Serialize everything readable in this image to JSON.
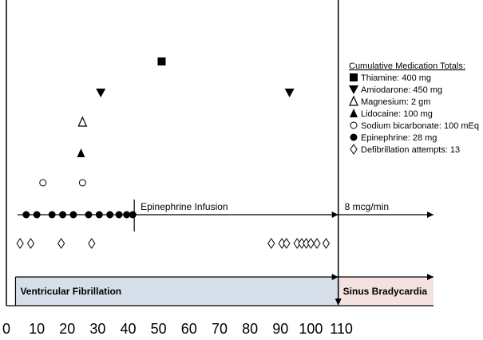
{
  "chart_data": {
    "type": "scatter",
    "xlim": [
      0,
      110
    ],
    "x_ticks": [
      "0",
      "10",
      "20",
      "30",
      "40",
      "50",
      "60",
      "70",
      "80",
      "90",
      "100",
      "110"
    ],
    "series": [
      {
        "name": "Thiamine: 400 mg",
        "marker": "square",
        "x": [
          51
        ]
      },
      {
        "name": "Amiodarone: 450 mg",
        "marker": "triangle-down",
        "x": [
          31,
          93
        ]
      },
      {
        "name": "Magnesium: 2 gm",
        "marker": "triangle-open",
        "x": [
          25
        ]
      },
      {
        "name": "Lidocaine: 100 mg",
        "marker": "triangle-filled",
        "x": [
          24.5
        ]
      },
      {
        "name": "Sodium bicarbonate: 100 mEq",
        "marker": "circle-open",
        "x": [
          12,
          25
        ]
      },
      {
        "name": "Epinephrine: 28 mg",
        "marker": "circle-filled",
        "x": [
          6.5,
          10,
          15,
          18.5,
          22,
          27,
          30.5,
          34,
          37,
          39.5,
          41.5
        ]
      },
      {
        "name": "Defibrillation attempts: 13",
        "marker": "diamond-open",
        "x": [
          4.5,
          8,
          18,
          28,
          87,
          90.5,
          92,
          95.5,
          97,
          98.5,
          100,
          102,
          105
        ]
      }
    ],
    "legend": {
      "title": "Cumulative Medication Totals:",
      "position": "right"
    },
    "infusion": {
      "label": "Epinephrine Infusion",
      "rate_label": "8 mcg/min",
      "start_x": 42
    },
    "rhythms": [
      {
        "label": "Ventricular Fibrillation",
        "start": 3,
        "end": 109,
        "color": "#d6dfe9"
      },
      {
        "label": "Sinus Bradycardia",
        "start": 109,
        "end": 140,
        "color": "#f5e1e0"
      }
    ],
    "event_line_x": 109
  }
}
